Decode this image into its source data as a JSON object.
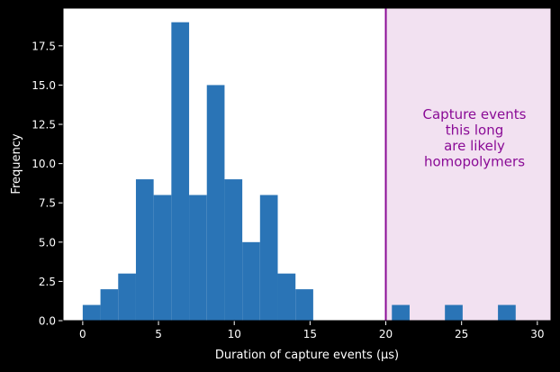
{
  "chart_data": {
    "type": "bar",
    "xlabel": "Duration of capture events (μs)",
    "ylabel": "Frequency",
    "xlim": [
      -1.3,
      30.9
    ],
    "ylim": [
      0,
      19.9
    ],
    "xticks": [
      0,
      5,
      10,
      15,
      20,
      25,
      30
    ],
    "yticks": [
      0.0,
      2.5,
      5.0,
      7.5,
      10.0,
      12.5,
      15.0,
      17.5
    ],
    "ytick_labels": [
      "0.0",
      "2.5",
      "5.0",
      "7.5",
      "10.0",
      "12.5",
      "15.0",
      "17.5"
    ],
    "bin_width": 1.17,
    "bins": [
      {
        "start": 0.0,
        "count": 1
      },
      {
        "start": 1.17,
        "count": 2
      },
      {
        "start": 2.34,
        "count": 3
      },
      {
        "start": 3.51,
        "count": 9
      },
      {
        "start": 4.68,
        "count": 8
      },
      {
        "start": 5.85,
        "count": 19
      },
      {
        "start": 7.02,
        "count": 8
      },
      {
        "start": 8.19,
        "count": 15
      },
      {
        "start": 9.36,
        "count": 9
      },
      {
        "start": 10.53,
        "count": 5
      },
      {
        "start": 11.7,
        "count": 8
      },
      {
        "start": 12.87,
        "count": 3
      },
      {
        "start": 14.04,
        "count": 2
      },
      {
        "start": 20.4,
        "count": 1
      },
      {
        "start": 23.9,
        "count": 1
      },
      {
        "start": 27.4,
        "count": 1
      }
    ],
    "bar_color": "#2a74b6",
    "threshold_x": 20.0,
    "threshold_color": "#8a0b96",
    "shade_color": "#f2e1f1",
    "annotation": [
      "Capture events",
      "this long",
      "are likely",
      "homopolymers"
    ],
    "annotation_color": "#8a0b96",
    "grid": false,
    "legend": "none"
  }
}
